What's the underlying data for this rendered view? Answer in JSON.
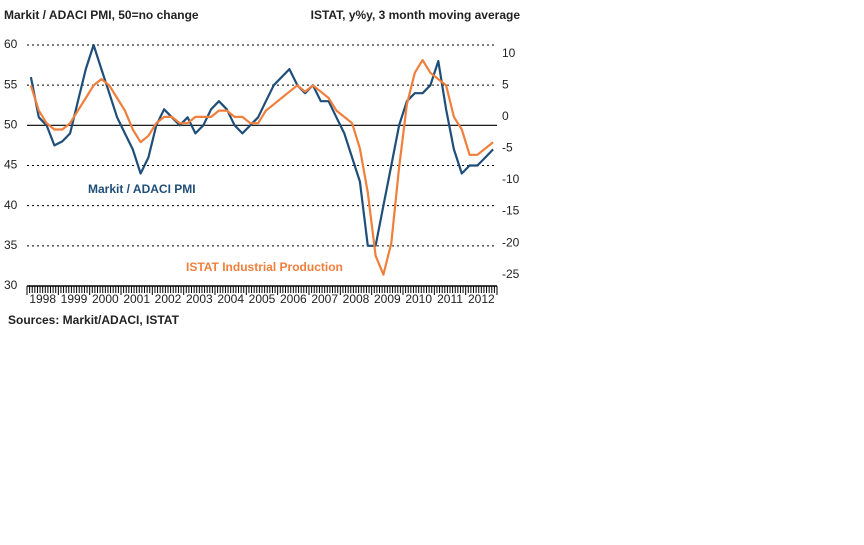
{
  "chart_data": {
    "type": "line",
    "title": "Markit / ADACI PMI, 50=no change",
    "subtitle": "ISTAT, y%y, 3 month moving average",
    "source": "Sources: Markit/ADACI, ISTAT",
    "annotations": [
      "Markit / ADACI PMI",
      "ISTAT Industrial Production"
    ],
    "categories": [
      "1998",
      null,
      null,
      null,
      "1999",
      null,
      null,
      null,
      "2000",
      null,
      null,
      null,
      "2001",
      null,
      null,
      null,
      "2002",
      null,
      null,
      null,
      "2003",
      null,
      null,
      null,
      "2004",
      null,
      null,
      null,
      "2005",
      null,
      null,
      null,
      "2006",
      null,
      null,
      null,
      "2007",
      null,
      null,
      null,
      "2008",
      null,
      null,
      null,
      "2009",
      null,
      null,
      null,
      "2010",
      null,
      null,
      null,
      "2011",
      null,
      null,
      null,
      "2012",
      null,
      null,
      null
    ],
    "series": [
      {
        "name": "Markit / ADACI PMI",
        "color": "#1f4e79",
        "axis": "y",
        "values": [
          56,
          51,
          50,
          47.5,
          48,
          49,
          53,
          57,
          60,
          57,
          54,
          51,
          49,
          47,
          44,
          46,
          50,
          52,
          51,
          50,
          51,
          49,
          50,
          52,
          53,
          52,
          50,
          49,
          50,
          51,
          53,
          55,
          56,
          57,
          55,
          54,
          55,
          53,
          53,
          51,
          49,
          46,
          43,
          35,
          35,
          40,
          45,
          50,
          53,
          54,
          54,
          55,
          58,
          52,
          47,
          44,
          45,
          45,
          46,
          47
        ]
      },
      {
        "name": "ISTAT Industrial Production",
        "color": "#f07f3c",
        "axis": "y2",
        "values": [
          5,
          1,
          -1,
          -2,
          -2,
          -1,
          1,
          3,
          5,
          6,
          5,
          3,
          1,
          -2,
          -4,
          -3,
          -1,
          0,
          0,
          -1,
          -1,
          0,
          0,
          0,
          1,
          1,
          0,
          0,
          -1,
          -1,
          1,
          2,
          3,
          4,
          5,
          4,
          5,
          4,
          3,
          1,
          0,
          -1,
          -5,
          -12,
          -22,
          -25,
          -20,
          -8,
          2,
          7,
          9,
          7,
          6,
          5,
          0,
          -2,
          -6,
          -6,
          -5,
          -4
        ]
      }
    ],
    "ylim": [
      30,
      60
    ],
    "yticks": [
      30,
      35,
      40,
      45,
      50,
      55,
      60
    ],
    "y2lim": [
      -26.8,
      11.4
    ],
    "y2ticks": [
      -25,
      -20,
      -15,
      -10,
      -5,
      0,
      5,
      10
    ],
    "grid": true
  }
}
